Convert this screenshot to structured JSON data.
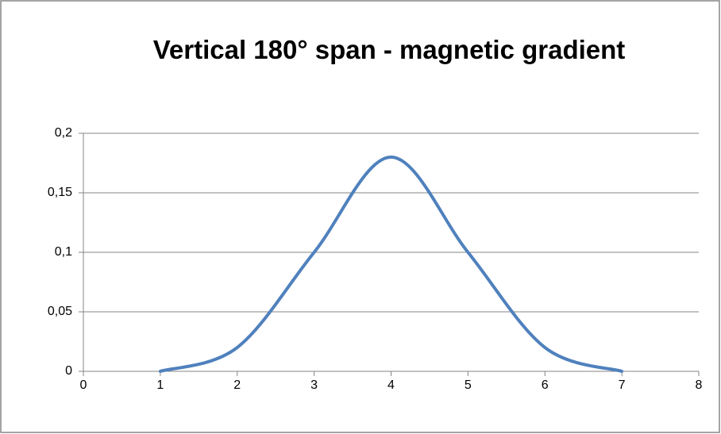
{
  "chart_data": {
    "type": "scatter-smooth",
    "title": "Vertical 180° span - magnetic gradient",
    "x": [
      1,
      2,
      3,
      4,
      5,
      6,
      7
    ],
    "series": [
      {
        "color": "#4f81bd",
        "values": [
          0,
          0.02,
          0.1,
          0.18,
          0.1,
          0.02,
          0
        ]
      }
    ],
    "xlim": [
      0,
      8
    ],
    "xticks": [
      0,
      1,
      2,
      3,
      4,
      5,
      6,
      7,
      8
    ],
    "ylim": [
      0,
      0.2
    ],
    "yticks": [
      0,
      {
        "value": 0.05,
        "label": "0,05"
      },
      {
        "value": 0.1,
        "label": "0,1"
      },
      {
        "value": 0.15,
        "label": "0,15"
      },
      {
        "value": 0.2,
        "label": "0,2"
      }
    ],
    "grid": true
  }
}
